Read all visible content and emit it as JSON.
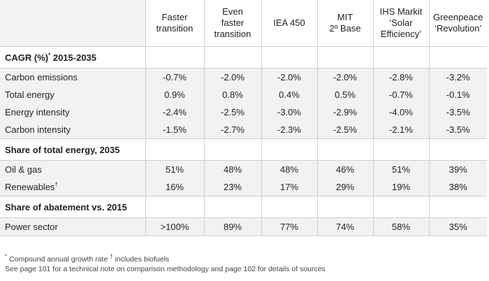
{
  "header": {
    "columns": [
      {
        "lines": [
          "Faster",
          "transition"
        ]
      },
      {
        "lines": [
          "Even",
          "faster",
          "transition"
        ]
      },
      {
        "lines": [
          "IEA 450"
        ]
      },
      {
        "lines": [
          "MIT",
          "2º Base"
        ]
      },
      {
        "lines": [
          "IHS Markit",
          "‘Solar",
          "Efficiency’"
        ]
      },
      {
        "lines": [
          "Greenpeace",
          "‘Revolution’"
        ]
      }
    ]
  },
  "sections": [
    {
      "title": "CAGR (%)",
      "title_sup": "*",
      "title_suffix": " 2015-2035",
      "rows": [
        {
          "label": "Carbon emissions",
          "label_sup": "",
          "values": [
            "-0.7%",
            "-2.0%",
            "-2.0%",
            "-2.0%",
            "-2.8%",
            "-3.2%"
          ]
        },
        {
          "label": "Total energy",
          "label_sup": "",
          "values": [
            "0.9%",
            "0.8%",
            "0.4%",
            "0.5%",
            "-0.7%",
            "-0.1%"
          ]
        },
        {
          "label": "Energy intensity",
          "label_sup": "",
          "values": [
            "-2.4%",
            "-2.5%",
            "-3.0%",
            "-2.9%",
            "-4.0%",
            "-3.5%"
          ]
        },
        {
          "label": "Carbon intensity",
          "label_sup": "",
          "values": [
            "-1.5%",
            "-2.7%",
            "-2.3%",
            "-2.5%",
            "-2.1%",
            "-3.5%"
          ]
        }
      ]
    },
    {
      "title": "Share of total energy, 2035",
      "title_sup": "",
      "title_suffix": "",
      "rows": [
        {
          "label": "Oil & gas",
          "label_sup": "",
          "values": [
            "51%",
            "48%",
            "48%",
            "46%",
            "51%",
            "39%"
          ]
        },
        {
          "label": "Renewables",
          "label_sup": "†",
          "values": [
            "16%",
            "23%",
            "17%",
            "29%",
            "19%",
            "38%"
          ]
        }
      ]
    },
    {
      "title": "Share of abatement vs. 2015",
      "title_sup": "",
      "title_suffix": "",
      "rows": [
        {
          "label": "Power sector",
          "label_sup": "",
          "values": [
            ">100%",
            "89%",
            "77%",
            "74%",
            "58%",
            "35%"
          ]
        }
      ]
    }
  ],
  "footnotes": {
    "line1_mark1": "*",
    "line1_text1": " Compound annual growth rate  ",
    "line1_mark2": "†",
    "line1_text2": " includes biofuels",
    "line2": "See page 101 for a technical note on comparison methodology and page 102 for details of sources"
  }
}
